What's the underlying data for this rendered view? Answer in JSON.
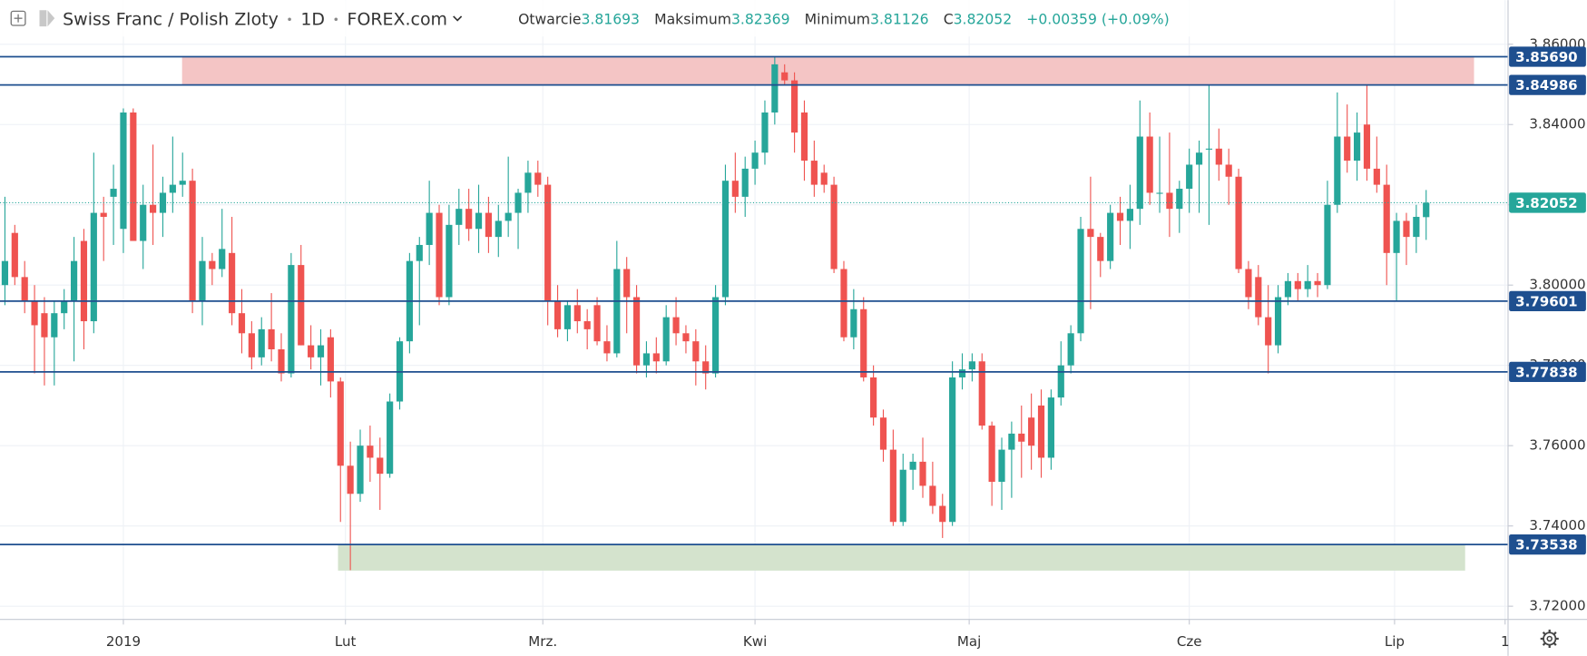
{
  "chart_data": {
    "type": "candlestick",
    "title": "Swiss Franc / Polish Zloty",
    "interval": "1D",
    "source": "FOREX.com",
    "ohlc_labels": {
      "open": "Otwarcie",
      "high": "Maksimum",
      "low": "Minimum",
      "close": "C"
    },
    "change": "+0.00359 (+0.09%)",
    "up_color": "#26a69a",
    "down_color": "#ef5350",
    "open": [
      3.8,
      3.813,
      3.802,
      3.796,
      3.793,
      3.787,
      3.793,
      3.796,
      3.811,
      3.791,
      3.818,
      3.822,
      3.814,
      3.843,
      3.811,
      3.82,
      3.818,
      3.823,
      3.825,
      3.826,
      3.796,
      3.806,
      3.804,
      3.808,
      3.793,
      3.788,
      3.782,
      3.789,
      3.784,
      3.778,
      3.805,
      3.785,
      3.782,
      3.787,
      3.776,
      3.755,
      3.748,
      3.76,
      3.757,
      3.753,
      3.771,
      3.786,
      3.806,
      3.81,
      3.818,
      3.797,
      3.815,
      3.819,
      3.814,
      3.818,
      3.812,
      3.816,
      3.818,
      3.823,
      3.828,
      3.825,
      3.796,
      3.789,
      3.795,
      3.791,
      3.795,
      3.786,
      3.783,
      3.804,
      3.797,
      3.78,
      3.783,
      3.781,
      3.792,
      3.788,
      3.786,
      3.781,
      3.778,
      3.797,
      3.826,
      3.822,
      3.829,
      3.833,
      3.843,
      3.853,
      3.851,
      3.843,
      3.831,
      3.828,
      3.825,
      3.804,
      3.787,
      3.794,
      3.777,
      3.767,
      3.759,
      3.741,
      3.754,
      3.756,
      3.75,
      3.745,
      3.741,
      3.777,
      3.779,
      3.781,
      3.765,
      3.751,
      3.759,
      3.763,
      3.767,
      3.77,
      3.757,
      3.772,
      3.78,
      3.788,
      3.814,
      3.812,
      3.806,
      3.818,
      3.816,
      3.819,
      3.837,
      3.823,
      3.823,
      3.819,
      3.824,
      3.83,
      3.834,
      3.834,
      3.83,
      3.827,
      3.804,
      3.802,
      3.792,
      3.785,
      3.797,
      3.801,
      3.799,
      3.801,
      3.8,
      3.82,
      3.837,
      3.831,
      3.84,
      3.829,
      3.825,
      3.808,
      3.816,
      3.812,
      3.81693
    ],
    "high": [
      3.822,
      3.815,
      3.806,
      3.8,
      3.797,
      3.796,
      3.799,
      3.812,
      3.814,
      3.833,
      3.822,
      3.83,
      3.844,
      3.844,
      3.825,
      3.835,
      3.827,
      3.837,
      3.833,
      3.829,
      3.812,
      3.808,
      3.819,
      3.817,
      3.799,
      3.791,
      3.792,
      3.798,
      3.788,
      3.808,
      3.81,
      3.79,
      3.789,
      3.789,
      3.777,
      3.761,
      3.764,
      3.765,
      3.762,
      3.773,
      3.787,
      3.808,
      3.812,
      3.826,
      3.82,
      3.82,
      3.824,
      3.824,
      3.825,
      3.822,
      3.82,
      3.832,
      3.824,
      3.831,
      3.831,
      3.827,
      3.8,
      3.796,
      3.799,
      3.794,
      3.797,
      3.79,
      3.811,
      3.807,
      3.8,
      3.786,
      3.787,
      3.795,
      3.797,
      3.79,
      3.789,
      3.785,
      3.8,
      3.83,
      3.833,
      3.832,
      3.836,
      3.846,
      3.857,
      3.855,
      3.853,
      3.846,
      3.836,
      3.83,
      3.827,
      3.806,
      3.799,
      3.797,
      3.78,
      3.769,
      3.764,
      3.758,
      3.758,
      3.762,
      3.756,
      3.748,
      3.781,
      3.783,
      3.783,
      3.783,
      3.766,
      3.762,
      3.766,
      3.77,
      3.773,
      3.774,
      3.774,
      3.786,
      3.79,
      3.817,
      3.827,
      3.813,
      3.82,
      3.822,
      3.825,
      3.846,
      3.843,
      3.837,
      3.838,
      3.826,
      3.834,
      3.836,
      3.85,
      3.839,
      3.834,
      3.829,
      3.806,
      3.805,
      3.8,
      3.8,
      3.803,
      3.803,
      3.805,
      3.803,
      3.826,
      3.848,
      3.845,
      3.843,
      3.85,
      3.837,
      3.83,
      3.818,
      3.818,
      3.82,
      3.82369
    ],
    "low": [
      3.795,
      3.8,
      3.793,
      3.778,
      3.775,
      3.775,
      3.789,
      3.781,
      3.784,
      3.788,
      3.806,
      3.81,
      3.808,
      3.812,
      3.804,
      3.81,
      3.812,
      3.818,
      3.822,
      3.793,
      3.79,
      3.8,
      3.802,
      3.79,
      3.783,
      3.779,
      3.78,
      3.781,
      3.776,
      3.777,
      3.785,
      3.779,
      3.775,
      3.772,
      3.741,
      3.729,
      3.746,
      3.751,
      3.744,
      3.752,
      3.769,
      3.783,
      3.79,
      3.805,
      3.795,
      3.795,
      3.81,
      3.811,
      3.808,
      3.808,
      3.807,
      3.812,
      3.809,
      3.818,
      3.822,
      3.79,
      3.787,
      3.786,
      3.788,
      3.784,
      3.785,
      3.781,
      3.782,
      3.788,
      3.778,
      3.777,
      3.778,
      3.78,
      3.785,
      3.783,
      3.775,
      3.774,
      3.777,
      3.795,
      3.818,
      3.817,
      3.825,
      3.83,
      3.84,
      3.85,
      3.833,
      3.826,
      3.822,
      3.823,
      3.803,
      3.786,
      3.784,
      3.776,
      3.765,
      3.756,
      3.74,
      3.74,
      3.749,
      3.747,
      3.743,
      3.737,
      3.74,
      3.774,
      3.776,
      3.764,
      3.745,
      3.744,
      3.747,
      3.752,
      3.754,
      3.752,
      3.754,
      3.77,
      3.778,
      3.786,
      3.794,
      3.802,
      3.804,
      3.81,
      3.809,
      3.815,
      3.82,
      3.818,
      3.812,
      3.813,
      3.818,
      3.818,
      3.815,
      3.826,
      3.82,
      3.803,
      3.794,
      3.79,
      3.778,
      3.783,
      3.795,
      3.796,
      3.797,
      3.797,
      3.799,
      3.818,
      3.828,
      3.826,
      3.826,
      3.823,
      3.8,
      3.796,
      3.805,
      3.808,
      3.81126
    ],
    "close": [
      3.806,
      3.802,
      3.796,
      3.79,
      3.787,
      3.793,
      3.796,
      3.806,
      3.791,
      3.818,
      3.817,
      3.824,
      3.843,
      3.811,
      3.82,
      3.818,
      3.823,
      3.825,
      3.826,
      3.796,
      3.806,
      3.804,
      3.809,
      3.793,
      3.788,
      3.782,
      3.789,
      3.784,
      3.778,
      3.805,
      3.785,
      3.782,
      3.785,
      3.776,
      3.755,
      3.748,
      3.76,
      3.757,
      3.753,
      3.771,
      3.786,
      3.806,
      3.81,
      3.818,
      3.797,
      3.815,
      3.819,
      3.814,
      3.818,
      3.812,
      3.816,
      3.818,
      3.823,
      3.828,
      3.825,
      3.796,
      3.789,
      3.795,
      3.791,
      3.789,
      3.786,
      3.783,
      3.804,
      3.797,
      3.78,
      3.783,
      3.781,
      3.792,
      3.788,
      3.786,
      3.781,
      3.778,
      3.797,
      3.826,
      3.822,
      3.829,
      3.833,
      3.843,
      3.855,
      3.851,
      3.838,
      3.831,
      3.825,
      3.825,
      3.804,
      3.787,
      3.794,
      3.777,
      3.767,
      3.759,
      3.741,
      3.754,
      3.756,
      3.75,
      3.745,
      3.741,
      3.777,
      3.779,
      3.781,
      3.765,
      3.751,
      3.759,
      3.763,
      3.761,
      3.76,
      3.757,
      3.772,
      3.78,
      3.788,
      3.814,
      3.812,
      3.806,
      3.818,
      3.816,
      3.819,
      3.837,
      3.823,
      3.823,
      3.819,
      3.824,
      3.83,
      3.833,
      3.834,
      3.83,
      3.827,
      3.804,
      3.797,
      3.792,
      3.785,
      3.797,
      3.801,
      3.799,
      3.801,
      3.8,
      3.82,
      3.837,
      3.831,
      3.838,
      3.829,
      3.825,
      3.808,
      3.816,
      3.812,
      3.817,
      3.82052
    ],
    "xlim": [
      -0.5,
      152.3
    ],
    "ylim": [
      3.7167,
      3.871
    ],
    "yticks": [
      {
        "value": 3.72,
        "label": "3.72000"
      },
      {
        "value": 3.74,
        "label": "3.74000"
      },
      {
        "value": 3.76,
        "label": "3.76000"
      },
      {
        "value": 3.78,
        "label": "3.78000"
      },
      {
        "value": 3.8,
        "label": "3.80000"
      },
      {
        "value": 3.82,
        "label": "3.82000"
      },
      {
        "value": 3.84,
        "label": "3.84000"
      },
      {
        "value": 3.86,
        "label": "3.86000"
      }
    ],
    "xticks": [
      {
        "value": 12,
        "label": "2019"
      },
      {
        "value": 34.5,
        "label": "Lut"
      },
      {
        "value": 54.5,
        "label": "Mrz."
      },
      {
        "value": 76,
        "label": "Kwi"
      },
      {
        "value": 97.7,
        "label": "Maj"
      },
      {
        "value": 120,
        "label": "Cze"
      },
      {
        "value": 140.8,
        "label": "Lip"
      },
      {
        "value": 152,
        "label": "1"
      }
    ],
    "grid": true,
    "level_color": "#1e4f8f",
    "levels": [
      {
        "value": 3.8569,
        "label": "3.85690"
      },
      {
        "value": 3.84986,
        "label": "3.84986"
      },
      {
        "value": 3.79601,
        "label": "3.79601"
      },
      {
        "value": 3.77838,
        "label": "3.77838"
      },
      {
        "value": 3.73538,
        "label": "3.73538"
      }
    ],
    "zones": [
      {
        "color": "#f4c5c5",
        "xlim": [
          18,
          148.8
        ],
        "ylim": [
          3.84986,
          3.8569
        ]
      },
      {
        "color": "#d4e3cd",
        "xlim": [
          33.8,
          147.9
        ],
        "ylim": [
          3.729,
          3.73538
        ]
      }
    ],
    "last_color": "#26a69a"
  }
}
